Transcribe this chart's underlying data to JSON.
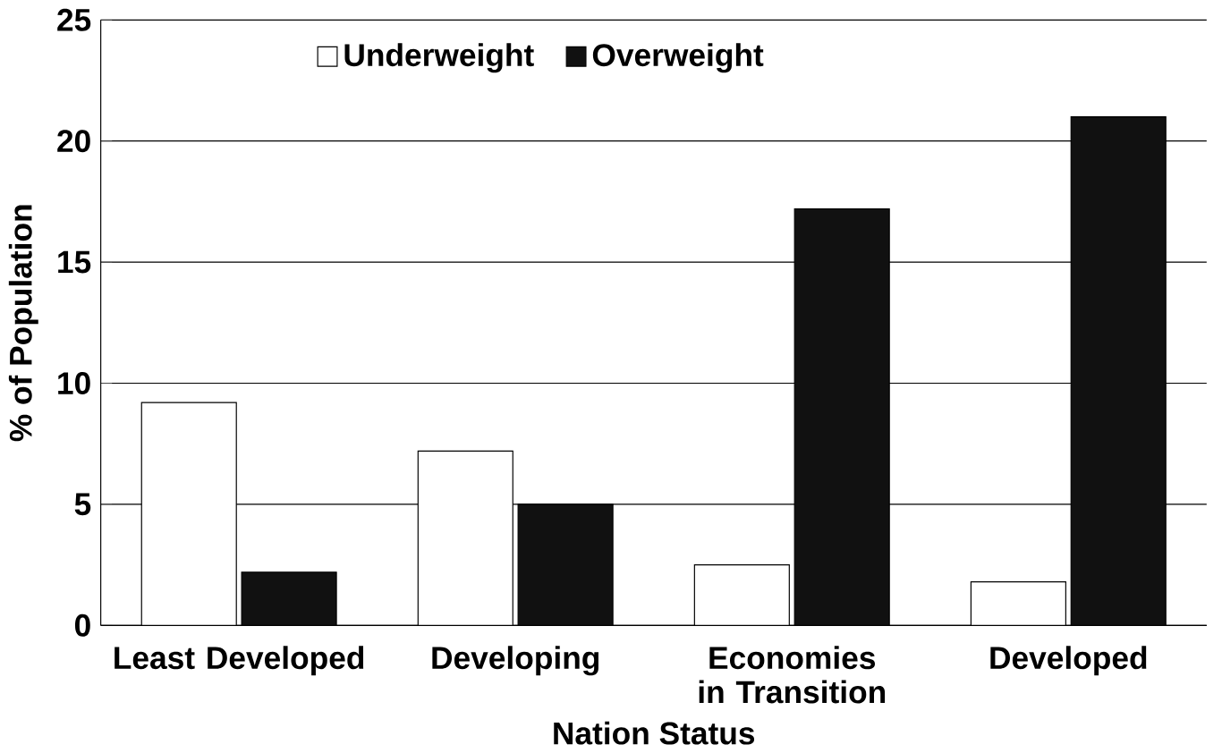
{
  "chart_data": {
    "type": "bar",
    "xlabel": "Nation Status",
    "ylabel": "% of Population",
    "categories": [
      "Least Developed",
      "Developing",
      "Economies in Transition",
      "Developed"
    ],
    "series": [
      {
        "name": "Underweight",
        "color": "#ffffff",
        "values": [
          9.2,
          7.2,
          2.5,
          1.8
        ]
      },
      {
        "name": "Overweight",
        "color": "#111111",
        "values": [
          2.2,
          5.0,
          17.2,
          21.0
        ]
      }
    ],
    "ylim": [
      0,
      25
    ],
    "yticks": [
      0,
      5,
      10,
      15,
      20,
      25
    ],
    "grid": "y",
    "legend": "top"
  }
}
